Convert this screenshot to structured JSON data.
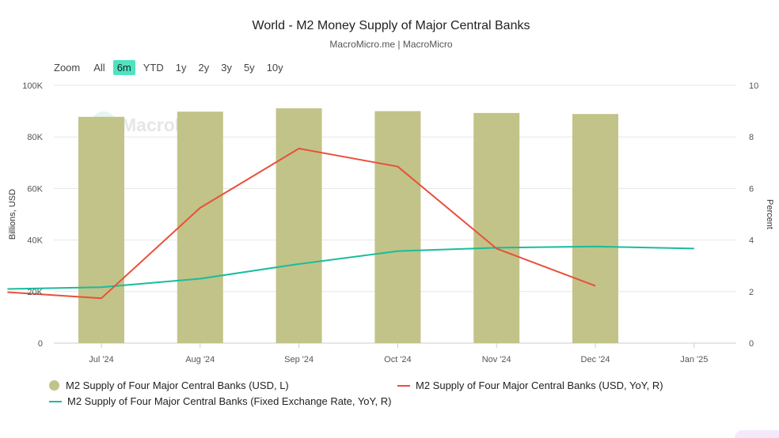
{
  "chart_data": {
    "type": "bar",
    "title": "World - M2 Money Supply of Major Central Banks",
    "subtitle": "MacroMicro.me | MacroMicro",
    "watermark": "MacroMicro",
    "categories": [
      "Jul '24",
      "Aug '24",
      "Sep '24",
      "Oct '24",
      "Nov '24",
      "Dec '24",
      "Jan '25"
    ],
    "y_left": {
      "label": "Billions, USD",
      "range": [
        0,
        100000
      ],
      "tick_values": [
        0,
        20000,
        40000,
        60000,
        80000,
        100000
      ],
      "tick_labels": [
        "0",
        "20K",
        "40K",
        "60K",
        "80K",
        "100K"
      ]
    },
    "y_right": {
      "label": "Percent",
      "range": [
        0,
        10
      ],
      "tick_values": [
        0,
        2,
        4,
        6,
        8,
        10
      ],
      "tick_labels": [
        "0",
        "2",
        "4",
        "6",
        "8",
        "10"
      ]
    },
    "series": [
      {
        "name": "M2 Supply of Four Major Central Banks (USD, L)",
        "type": "bar",
        "axis": "left",
        "color": "#c2c388",
        "values": [
          87800,
          89800,
          91100,
          90000,
          89300,
          88900,
          null
        ]
      },
      {
        "name": "M2 Supply of Four Major Central Banks (USD, YoY, R)",
        "type": "line",
        "axis": "right",
        "color": "#e8503a",
        "points": [
          [
            -0.95,
            1.98
          ],
          [
            0,
            1.74
          ],
          [
            1,
            5.25
          ],
          [
            2,
            7.55
          ],
          [
            3,
            6.85
          ],
          [
            4,
            3.67
          ],
          [
            5,
            2.22
          ]
        ]
      },
      {
        "name": "M2 Supply of Four Major Central Banks (Fixed Exchange Rate, YoY, R)",
        "type": "line",
        "axis": "right",
        "color": "#1abc9c",
        "points": [
          [
            -0.95,
            2.1
          ],
          [
            0,
            2.17
          ],
          [
            1,
            2.5
          ],
          [
            2,
            3.07
          ],
          [
            3,
            3.57
          ],
          [
            4,
            3.7
          ],
          [
            5,
            3.75
          ],
          [
            6,
            3.67
          ]
        ]
      }
    ],
    "grid": true,
    "legend_position": "bottom"
  },
  "zoom": {
    "label": "Zoom",
    "options": [
      "All",
      "6m",
      "YTD",
      "1y",
      "2y",
      "3y",
      "5y",
      "10y"
    ],
    "selected": "6m"
  }
}
